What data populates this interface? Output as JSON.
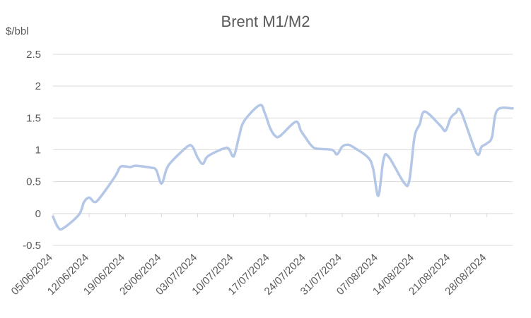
{
  "chart_data": {
    "type": "line",
    "title": "Brent M1/M2",
    "ylabel": "$/bbl",
    "xlabel": "",
    "ylim": [
      -0.5,
      2.5
    ],
    "yticks": [
      2.5,
      2,
      1.5,
      1,
      0.5,
      0,
      -0.5
    ],
    "ytick_labels": [
      "2.5",
      "2",
      "1.5",
      "1",
      "0.5",
      "0",
      "-0.5"
    ],
    "xtick_labels": [
      "05/06/2024",
      "12/06/2024",
      "19/06/2024",
      "26/06/2024",
      "03/07/2024",
      "10/07/2024",
      "17/07/2024",
      "24/07/2024",
      "31/07/2024",
      "07/08/2024",
      "14/08/2024",
      "21/08/2024",
      "28/08/2024"
    ],
    "x_start": "2024-06-05",
    "x_end": "2024-09-02",
    "grid": true,
    "legend": "none",
    "series": [
      {
        "color": "#b4c7e7",
        "x": [
          "2024-06-05",
          "2024-06-06",
          "2024-06-07",
          "2024-06-10",
          "2024-06-11",
          "2024-06-12",
          "2024-06-13",
          "2024-06-14",
          "2024-06-17",
          "2024-06-18",
          "2024-06-19",
          "2024-06-20",
          "2024-06-21",
          "2024-06-24",
          "2024-06-25",
          "2024-06-26",
          "2024-06-27",
          "2024-06-28",
          "2024-07-01",
          "2024-07-02",
          "2024-07-03",
          "2024-07-04",
          "2024-07-05",
          "2024-07-08",
          "2024-07-09",
          "2024-07-10",
          "2024-07-11",
          "2024-07-12",
          "2024-07-15",
          "2024-07-16",
          "2024-07-17",
          "2024-07-18",
          "2024-07-19",
          "2024-07-22",
          "2024-07-23",
          "2024-07-24",
          "2024-07-25",
          "2024-07-26",
          "2024-07-29",
          "2024-07-30",
          "2024-07-31",
          "2024-08-01",
          "2024-08-02",
          "2024-08-05",
          "2024-08-06",
          "2024-08-07",
          "2024-08-08",
          "2024-08-09",
          "2024-08-12",
          "2024-08-13",
          "2024-08-14",
          "2024-08-15",
          "2024-08-16",
          "2024-08-19",
          "2024-08-20",
          "2024-08-21",
          "2024-08-22",
          "2024-08-23",
          "2024-08-26",
          "2024-08-27",
          "2024-08-28",
          "2024-08-29",
          "2024-08-30",
          "2024-09-02"
        ],
        "values": [
          -0.05,
          -0.22,
          -0.23,
          -0.02,
          0.18,
          0.25,
          0.18,
          0.24,
          0.58,
          0.73,
          0.74,
          0.73,
          0.75,
          0.72,
          0.68,
          0.47,
          0.7,
          0.82,
          1.05,
          1.05,
          0.88,
          0.78,
          0.9,
          1.02,
          1.02,
          0.9,
          1.2,
          1.45,
          1.7,
          1.58,
          1.35,
          1.22,
          1.22,
          1.44,
          1.3,
          1.18,
          1.07,
          1.02,
          1.0,
          0.93,
          1.05,
          1.08,
          1.05,
          0.88,
          0.7,
          0.28,
          0.85,
          0.89,
          0.48,
          0.52,
          1.2,
          1.4,
          1.6,
          1.38,
          1.3,
          1.5,
          1.58,
          1.6,
          0.95,
          1.05,
          1.1,
          1.2,
          1.62,
          1.65
        ]
      }
    ]
  }
}
